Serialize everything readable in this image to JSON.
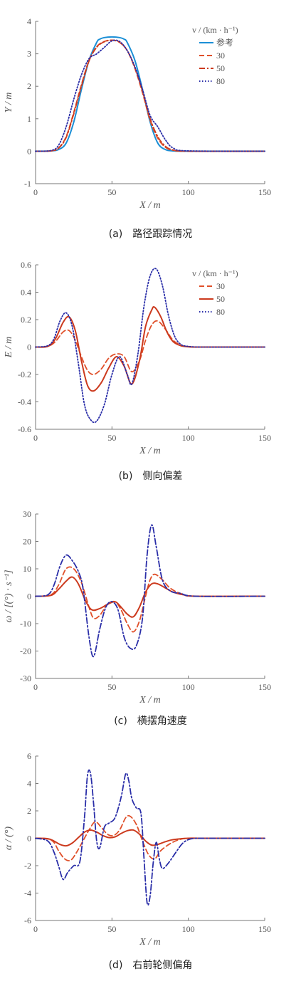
{
  "figure": {
    "colors": {
      "ref": "#1b8fd6",
      "s30": "#e0502a",
      "s50": "#cc3a1e",
      "s80": "#2a2ea8",
      "axis": "#777777"
    }
  },
  "chart_data": [
    {
      "id": "a",
      "type": "line",
      "caption": "(a)　路径跟踪情况",
      "xlabel": "X / m",
      "ylabel": "Y / m",
      "xlim": [
        0,
        150
      ],
      "ylim": [
        -1,
        4
      ],
      "xticks": [
        0,
        50,
        100,
        150
      ],
      "yticks": [
        -1,
        0,
        1,
        2,
        3,
        4
      ],
      "legend": {
        "title": "v / (km · h⁻¹)",
        "position": "top-right"
      },
      "series": [
        {
          "name": "参考",
          "style": "solid",
          "color": "#1b8fd6",
          "x": [
            0,
            10,
            15,
            20,
            25,
            30,
            35,
            40,
            42,
            45,
            50,
            55,
            58,
            60,
            65,
            70,
            75,
            80,
            85,
            90,
            100,
            150
          ],
          "y": [
            0,
            0.01,
            0.05,
            0.25,
            0.9,
            1.9,
            2.8,
            3.35,
            3.45,
            3.5,
            3.52,
            3.5,
            3.45,
            3.35,
            2.8,
            1.9,
            0.9,
            0.25,
            0.05,
            0.01,
            0,
            0
          ]
        },
        {
          "name": "30",
          "style": "dashed",
          "color": "#e0502a",
          "x": [
            0,
            10,
            15,
            20,
            25,
            30,
            35,
            40,
            45,
            50,
            55,
            60,
            65,
            70,
            75,
            80,
            85,
            90,
            100,
            150
          ],
          "y": [
            0,
            0.01,
            0.1,
            0.45,
            1.2,
            2.05,
            2.8,
            3.22,
            3.38,
            3.42,
            3.35,
            3.1,
            2.55,
            1.8,
            0.95,
            0.4,
            0.12,
            0.03,
            0,
            0
          ]
        },
        {
          "name": "50",
          "style": "dash-dot",
          "color": "#cc3a1e",
          "x": [
            0,
            10,
            15,
            20,
            25,
            30,
            35,
            40,
            45,
            50,
            55,
            60,
            65,
            70,
            75,
            80,
            85,
            90,
            100,
            150
          ],
          "y": [
            0,
            0.01,
            0.09,
            0.42,
            1.15,
            2.0,
            2.78,
            3.2,
            3.37,
            3.42,
            3.36,
            3.1,
            2.58,
            1.85,
            1.0,
            0.45,
            0.15,
            0.04,
            0,
            0
          ]
        },
        {
          "name": "80",
          "style": "dotted",
          "color": "#2a2ea8",
          "x": [
            0,
            10,
            15,
            20,
            25,
            30,
            35,
            40,
            45,
            50,
            55,
            60,
            65,
            70,
            75,
            80,
            85,
            90,
            100,
            150
          ],
          "y": [
            0,
            0.02,
            0.18,
            0.75,
            1.6,
            2.35,
            2.85,
            3.0,
            3.2,
            3.4,
            3.38,
            3.1,
            2.6,
            1.9,
            1.1,
            0.75,
            0.35,
            0.1,
            0.01,
            0
          ]
        }
      ]
    },
    {
      "id": "b",
      "type": "line",
      "caption": "(b)　侧向偏差",
      "xlabel": "X / m",
      "ylabel": "E / m",
      "xlim": [
        0,
        150
      ],
      "ylim": [
        -0.6,
        0.6
      ],
      "xticks": [
        0,
        50,
        100,
        150
      ],
      "yticks": [
        -0.6,
        -0.4,
        -0.2,
        0,
        0.2,
        0.4,
        0.6
      ],
      "legend": {
        "title": "v / (km · h⁻¹)",
        "position": "top-right"
      },
      "series": [
        {
          "name": "30",
          "style": "dashed",
          "color": "#e0502a",
          "x": [
            0,
            8,
            13,
            18,
            22,
            26,
            30,
            34,
            38,
            43,
            48,
            53,
            58,
            63,
            68,
            72,
            76,
            80,
            85,
            90,
            95,
            100,
            110,
            150
          ],
          "y": [
            0,
            0.005,
            0.04,
            0.11,
            0.12,
            0.05,
            -0.07,
            -0.17,
            -0.2,
            -0.16,
            -0.08,
            -0.05,
            -0.07,
            -0.18,
            -0.1,
            0.05,
            0.16,
            0.19,
            0.13,
            0.05,
            0.015,
            0.003,
            0,
            0
          ]
        },
        {
          "name": "50",
          "style": "solid",
          "color": "#cc3a1e",
          "x": [
            0,
            8,
            13,
            18,
            22,
            26,
            30,
            34,
            38,
            43,
            48,
            53,
            58,
            63,
            68,
            72,
            76,
            78,
            82,
            86,
            90,
            95,
            100,
            110,
            150
          ],
          "y": [
            0,
            0.005,
            0.06,
            0.18,
            0.22,
            0.12,
            -0.1,
            -0.28,
            -0.32,
            -0.26,
            -0.15,
            -0.07,
            -0.14,
            -0.27,
            -0.1,
            0.15,
            0.27,
            0.29,
            0.22,
            0.11,
            0.04,
            0.01,
            0.002,
            0,
            0
          ]
        },
        {
          "name": "80",
          "style": "dotted",
          "color": "#2a2ea8",
          "x": [
            0,
            8,
            12,
            16,
            20,
            24,
            28,
            32,
            36,
            40,
            45,
            50,
            55,
            60,
            63,
            67,
            71,
            75,
            79,
            83,
            87,
            91,
            95,
            100,
            110,
            150
          ],
          "y": [
            0,
            0.01,
            0.06,
            0.19,
            0.25,
            0.15,
            -0.12,
            -0.42,
            -0.53,
            -0.54,
            -0.42,
            -0.2,
            -0.07,
            -0.2,
            -0.27,
            -0.05,
            0.3,
            0.52,
            0.57,
            0.45,
            0.23,
            0.08,
            0.02,
            0.005,
            0,
            0
          ]
        }
      ]
    },
    {
      "id": "c",
      "type": "line",
      "caption": "(c)　横摆角速度",
      "xlabel": "X / m",
      "ylabel": "ω / [(°) · s⁻¹]",
      "xlim": [
        0,
        150
      ],
      "ylim": [
        -30,
        30
      ],
      "xticks": [
        0,
        50,
        100,
        150
      ],
      "yticks": [
        -30,
        -20,
        -10,
        0,
        10,
        20,
        30
      ],
      "series": [
        {
          "name": "30",
          "style": "dashed",
          "color": "#e0502a",
          "x": [
            0,
            10,
            15,
            20,
            25,
            30,
            35,
            38,
            42,
            47,
            52,
            56,
            60,
            64,
            68,
            72,
            75,
            78,
            83,
            88,
            95,
            105,
            150
          ],
          "y": [
            0,
            0.5,
            4,
            10,
            10,
            5,
            -4,
            -8,
            -7,
            -3,
            -2,
            -5,
            -10,
            -13,
            -9,
            0,
            6,
            8,
            6,
            3,
            1,
            0,
            0
          ]
        },
        {
          "name": "50",
          "style": "solid",
          "color": "#cc3a1e",
          "x": [
            0,
            10,
            15,
            20,
            24,
            28,
            33,
            37,
            42,
            47,
            52,
            56,
            60,
            64,
            68,
            72,
            76,
            80,
            85,
            90,
            97,
            105,
            150
          ],
          "y": [
            0,
            0.3,
            2.5,
            5.5,
            7,
            4.5,
            -2,
            -5,
            -4.5,
            -3,
            -2,
            -4,
            -6.5,
            -7.5,
            -4,
            1.5,
            4.5,
            4.5,
            3,
            1.5,
            0.5,
            0,
            0
          ]
        },
        {
          "name": "80",
          "style": "dash-dot",
          "color": "#2a2ea8",
          "x": [
            0,
            8,
            12,
            16,
            20,
            24,
            28,
            31,
            35,
            38,
            42,
            46,
            50,
            54,
            58,
            62,
            66,
            70,
            73,
            76,
            79,
            83,
            88,
            95,
            105,
            150
          ],
          "y": [
            0,
            0.5,
            4,
            11,
            15,
            13,
            9,
            3,
            -15,
            -22,
            -12,
            -4,
            -2,
            -5,
            -15,
            -19,
            -18,
            -8,
            15,
            26,
            18,
            6,
            2,
            1,
            0,
            0
          ]
        }
      ]
    },
    {
      "id": "d",
      "type": "line",
      "caption": "(d)　右前轮侧偏角",
      "xlabel": "X / m",
      "ylabel": "α / (°)",
      "xlim": [
        0,
        150
      ],
      "ylim": [
        -6,
        6
      ],
      "xticks": [
        0,
        50,
        100,
        150
      ],
      "yticks": [
        -6,
        -4,
        -2,
        0,
        2,
        4,
        6
      ],
      "series": [
        {
          "name": "30",
          "style": "dashed",
          "color": "#e0502a",
          "x": [
            0,
            8,
            12,
            15,
            19,
            23,
            27,
            31,
            35,
            39,
            43,
            47,
            51,
            55,
            59,
            62,
            66,
            70,
            74,
            78,
            82,
            88,
            94,
            100,
            110,
            150
          ],
          "y": [
            0,
            -0.05,
            -0.3,
            -0.9,
            -1.5,
            -1.6,
            -1.0,
            -0.2,
            0.6,
            1.2,
            0.8,
            0.3,
            0.2,
            0.6,
            1.5,
            1.6,
            1.0,
            -0.2,
            -1.2,
            -1.5,
            -0.9,
            -0.4,
            -0.1,
            0,
            0,
            0
          ]
        },
        {
          "name": "50",
          "style": "solid",
          "color": "#cc3a1e",
          "x": [
            0,
            8,
            12,
            16,
            20,
            24,
            28,
            32,
            36,
            40,
            44,
            48,
            52,
            56,
            60,
            64,
            68,
            72,
            76,
            80,
            85,
            90,
            100,
            110,
            150
          ],
          "y": [
            0,
            -0.03,
            -0.2,
            -0.45,
            -0.55,
            -0.35,
            0.05,
            0.45,
            0.6,
            0.45,
            0.2,
            0.05,
            0.1,
            0.35,
            0.55,
            0.6,
            0.3,
            -0.2,
            -0.5,
            -0.45,
            -0.25,
            -0.1,
            0,
            0,
            0
          ]
        },
        {
          "name": "80",
          "style": "dash-dot",
          "color": "#2a2ea8",
          "x": [
            0,
            8,
            12,
            15,
            18,
            21,
            25,
            29,
            32,
            34,
            36,
            38,
            40,
            42,
            45,
            48,
            52,
            56,
            59,
            61,
            63,
            66,
            69,
            71,
            73,
            75,
            77,
            79,
            81,
            83,
            87,
            92,
            96,
            100,
            105,
            110,
            150
          ],
          "y": [
            0,
            -0.2,
            -1.0,
            -2.0,
            -3.0,
            -2.5,
            -2.0,
            -1.7,
            1.5,
            4.6,
            4.7,
            2.5,
            -0.2,
            -0.7,
            0.8,
            1.1,
            1.5,
            3.0,
            4.7,
            4.2,
            2.9,
            2.2,
            1.8,
            -1.5,
            -4.7,
            -4.2,
            -1.8,
            -0.3,
            -1.5,
            -2.2,
            -1.8,
            -1.0,
            -0.4,
            -0.1,
            0,
            0,
            0
          ]
        }
      ]
    }
  ]
}
